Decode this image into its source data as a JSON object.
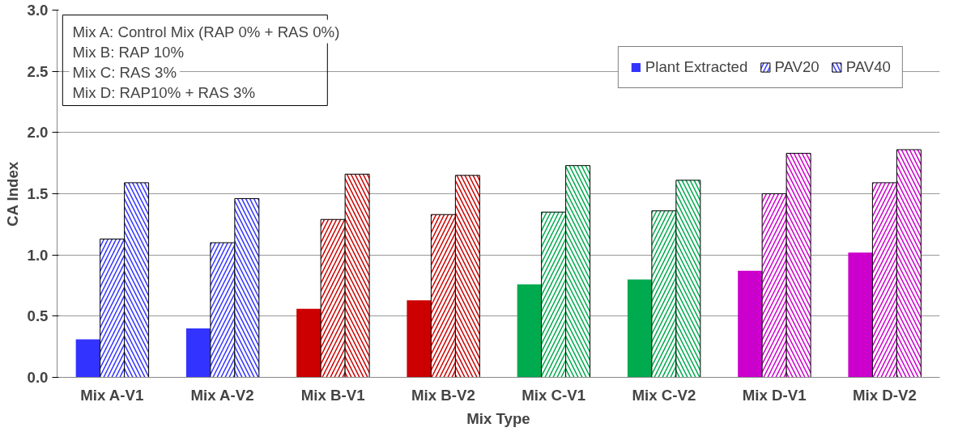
{
  "chart_data": {
    "type": "bar",
    "xlabel": "Mix Type",
    "ylabel": "CA Index",
    "categories": [
      "Mix A-V1",
      "Mix A-V2",
      "Mix B-V1",
      "Mix B-V2",
      "Mix C-V1",
      "Mix C-V2",
      "Mix D-V1",
      "Mix D-V2"
    ],
    "series": [
      {
        "name": "Plant Extracted",
        "colors": [
          "#3333ff",
          "#3333ff",
          "#cc0000",
          "#cc0000",
          "#00aa4f",
          "#00aa4f",
          "#cc00cc",
          "#cc00cc"
        ],
        "values": [
          0.31,
          0.4,
          0.56,
          0.63,
          0.76,
          0.8,
          0.87,
          1.02
        ]
      },
      {
        "name": "PAV20",
        "colors": [
          "#3333ff",
          "#3333ff",
          "#cc0000",
          "#cc0000",
          "#00aa4f",
          "#00aa4f",
          "#cc00cc",
          "#cc00cc"
        ],
        "values": [
          1.13,
          1.1,
          1.29,
          1.33,
          1.35,
          1.36,
          1.5,
          1.59
        ]
      },
      {
        "name": "PAV40",
        "colors": [
          "#3333ff",
          "#3333ff",
          "#cc0000",
          "#cc0000",
          "#00aa4f",
          "#00aa4f",
          "#cc00cc",
          "#cc00cc"
        ],
        "values": [
          1.59,
          1.46,
          1.66,
          1.65,
          1.73,
          1.61,
          1.83,
          1.86
        ]
      }
    ],
    "ylim": [
      0,
      3
    ],
    "yticks": [
      {
        "value": 0,
        "label": "0.0"
      },
      0.5,
      {
        "value": 1,
        "label": "1.0"
      },
      1.5,
      {
        "value": 2,
        "label": "2.0"
      },
      2.5,
      {
        "value": 3,
        "label": "3.0"
      }
    ],
    "grid": "y",
    "legend": "top right",
    "annotations": [
      "Mix A: Control Mix (RAP 0% + RAS 0%)",
      "Mix B: RAP 10%",
      "Mix C: RAS 3%",
      "Mix D: RAP10% + RAS 3%"
    ]
  }
}
